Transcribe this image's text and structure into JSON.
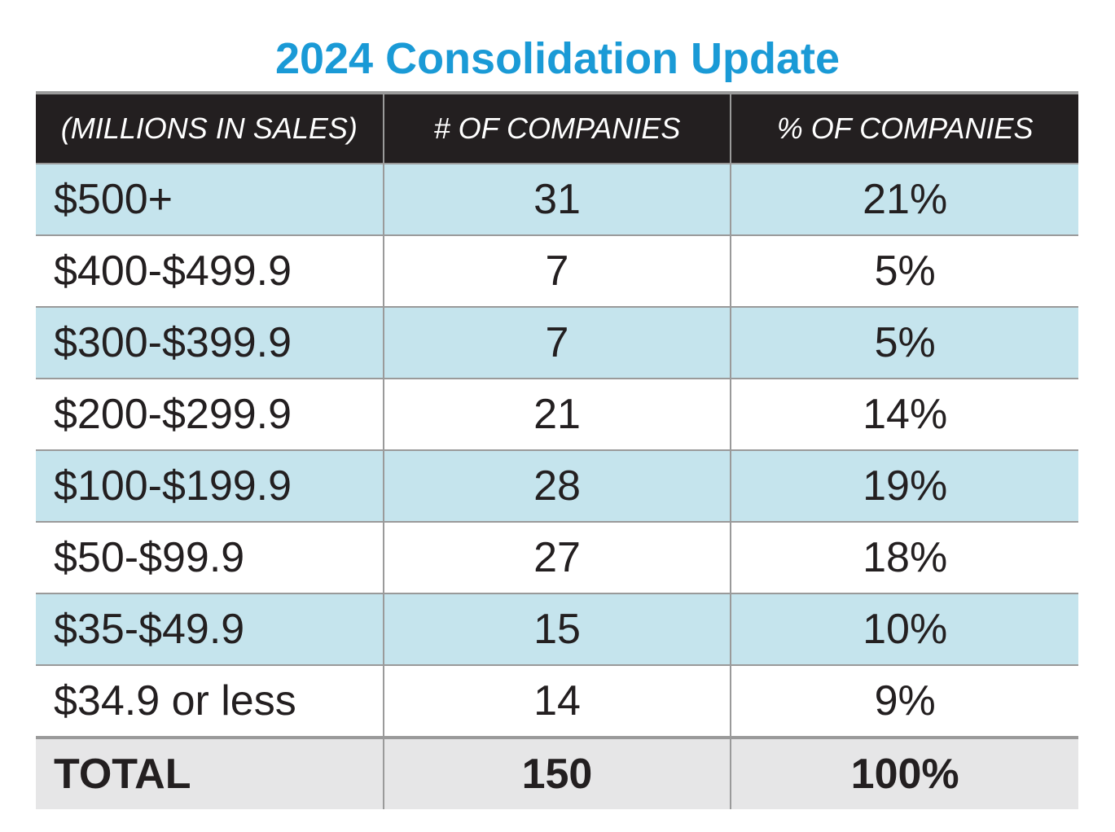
{
  "title": "2024 Consolidation Update",
  "table": {
    "header": [
      "(MILLIONS IN SALES)",
      "# OF COMPANIES",
      "% OF COMPANIES"
    ],
    "rows": [
      [
        "$500+",
        "31",
        "21%"
      ],
      [
        "$400-$499.9",
        "7",
        "5%"
      ],
      [
        "$300-$399.9",
        "7",
        "5%"
      ],
      [
        "$200-$299.9",
        "21",
        "14%"
      ],
      [
        "$100-$199.9",
        "28",
        "19%"
      ],
      [
        "$50-$99.9",
        "27",
        "18%"
      ],
      [
        "$35-$49.9",
        "15",
        "10%"
      ],
      [
        "$34.9 or less",
        "14",
        "9%"
      ]
    ],
    "total": [
      "TOTAL",
      "150",
      "100%"
    ]
  }
}
